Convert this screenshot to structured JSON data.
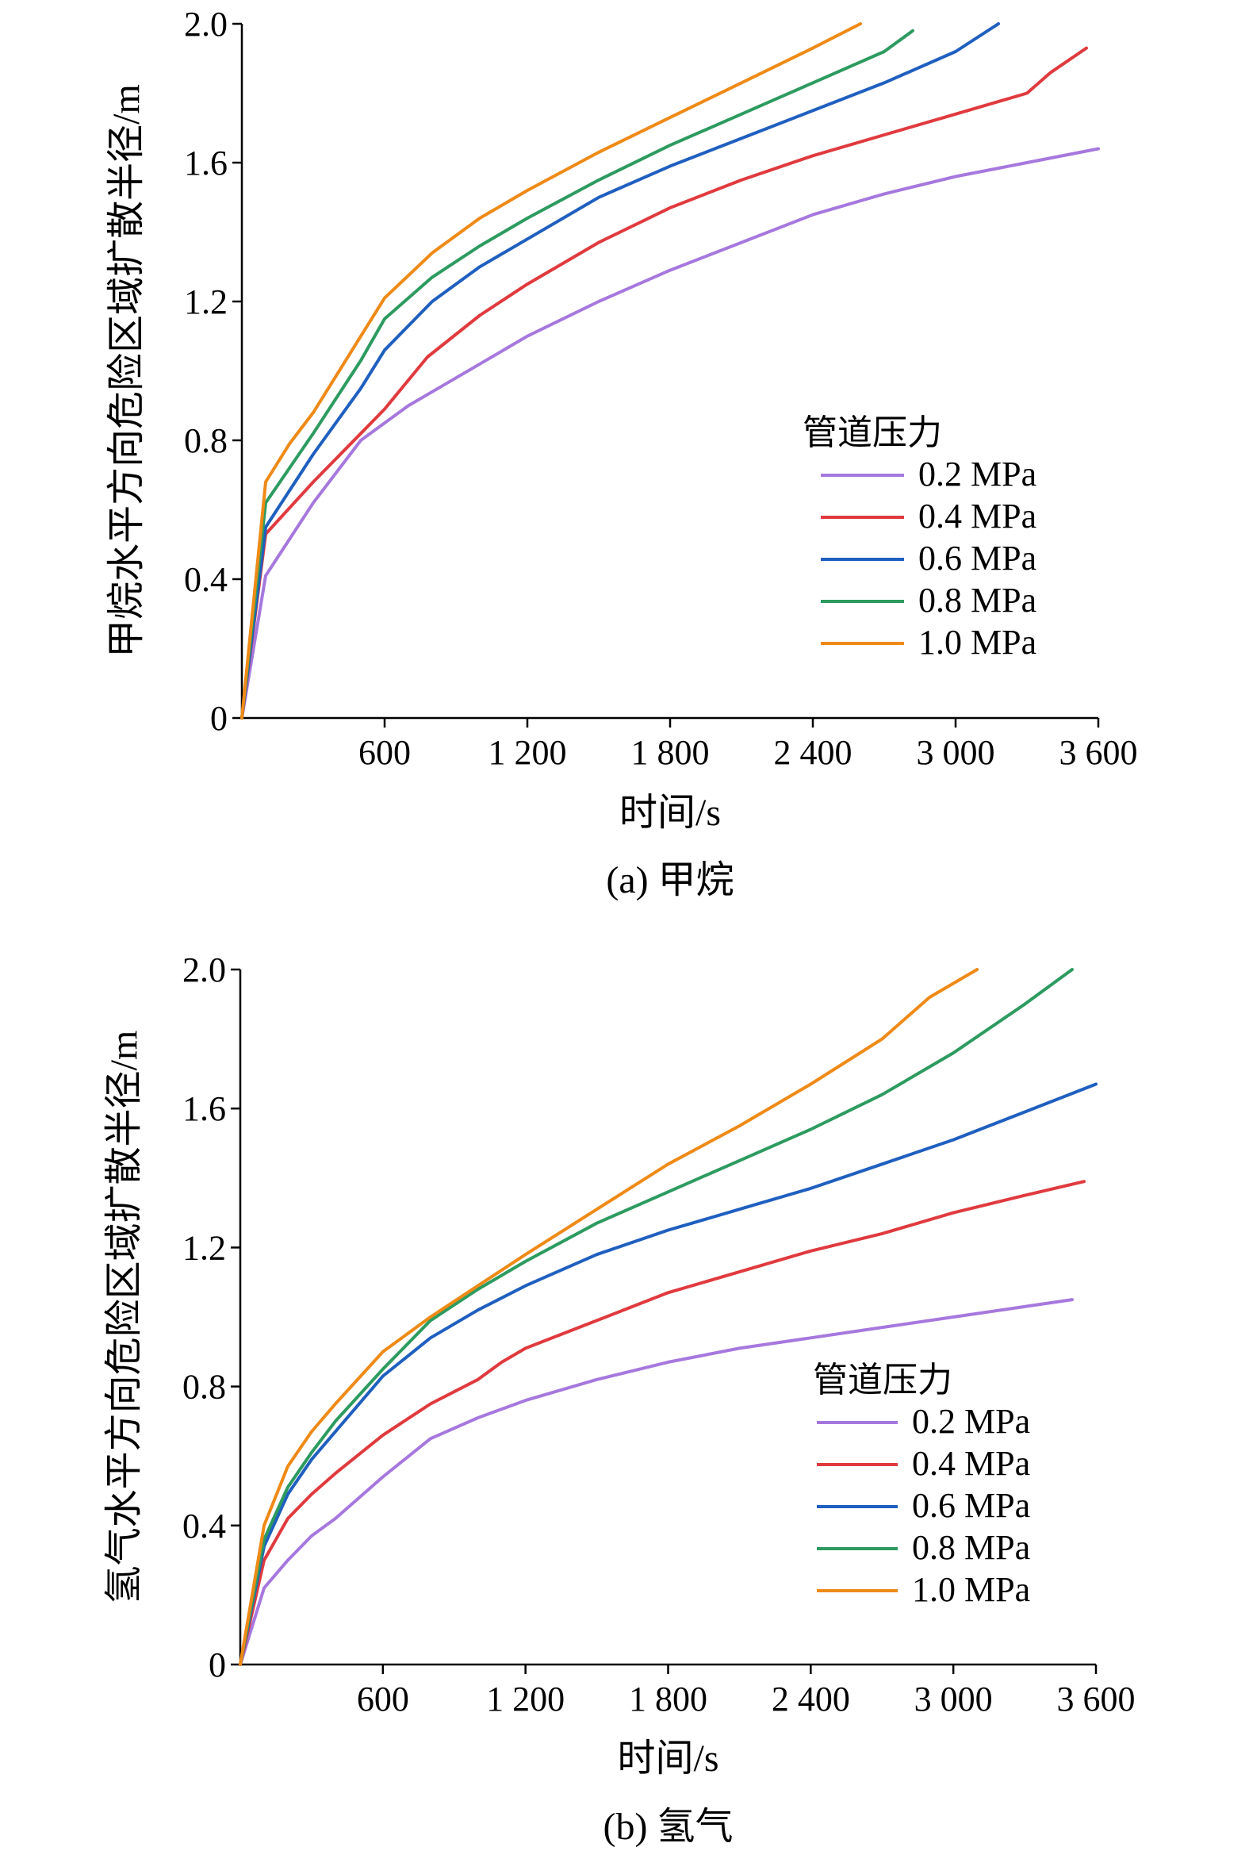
{
  "chart_data": [
    {
      "type": "line",
      "caption": "(a) 甲烷",
      "xlabel": "时间/s",
      "ylabel": "甲烷水平方向危险区域扩散半径/m",
      "xlim": [
        0,
        3600
      ],
      "ylim": [
        0,
        2.0
      ],
      "xticks": [
        600,
        1200,
        1800,
        2400,
        3000,
        3600
      ],
      "xtick_labels": [
        "600",
        "1 200",
        "1 800",
        "2 400",
        "3 000",
        "3 600"
      ],
      "yticks": [
        0,
        0.4,
        0.8,
        1.2,
        1.6,
        2.0
      ],
      "ytick_labels": [
        "0",
        "0.4",
        "0.8",
        "1.2",
        "1.6",
        "2.0"
      ],
      "grid": false,
      "legend_title": "管道压力",
      "legend_position": "right-middle",
      "series": [
        {
          "name": "0.2 MPa",
          "color": "#a678de",
          "x": [
            0,
            100,
            300,
            500,
            600,
            700,
            800,
            1000,
            1200,
            1500,
            1800,
            2100,
            2400,
            2700,
            3000,
            3300,
            3600
          ],
          "y": [
            0,
            0.41,
            0.62,
            0.8,
            0.85,
            0.9,
            0.94,
            1.02,
            1.1,
            1.2,
            1.29,
            1.37,
            1.45,
            1.51,
            1.56,
            1.6,
            1.64
          ]
        },
        {
          "name": "0.4 MPa",
          "color": "#e03a3e",
          "x": [
            0,
            100,
            300,
            500,
            600,
            780,
            1000,
            1200,
            1500,
            1800,
            2100,
            2400,
            2700,
            3000,
            3300,
            3400,
            3550
          ],
          "y": [
            0,
            0.53,
            0.68,
            0.82,
            0.89,
            1.04,
            1.16,
            1.25,
            1.37,
            1.47,
            1.55,
            1.62,
            1.68,
            1.74,
            1.8,
            1.86,
            1.93
          ]
        },
        {
          "name": "0.6 MPa",
          "color": "#1f5fbf",
          "x": [
            0,
            100,
            300,
            500,
            600,
            800,
            1000,
            1200,
            1500,
            1800,
            2100,
            2400,
            2700,
            3000,
            3180
          ],
          "y": [
            0,
            0.55,
            0.76,
            0.95,
            1.06,
            1.2,
            1.3,
            1.38,
            1.5,
            1.59,
            1.67,
            1.75,
            1.83,
            1.92,
            2.0
          ]
        },
        {
          "name": "0.8 MPa",
          "color": "#2d9b5f",
          "x": [
            0,
            100,
            300,
            500,
            600,
            800,
            1000,
            1200,
            1500,
            1800,
            2100,
            2400,
            2700,
            2820
          ],
          "y": [
            0,
            0.62,
            0.82,
            1.03,
            1.15,
            1.27,
            1.36,
            1.44,
            1.55,
            1.65,
            1.74,
            1.83,
            1.92,
            1.98
          ]
        },
        {
          "name": "1.0 MPa",
          "color": "#ef8a17",
          "x": [
            0,
            100,
            200,
            300,
            400,
            500,
            600,
            800,
            1000,
            1200,
            1500,
            1800,
            2100,
            2400,
            2600
          ],
          "y": [
            0,
            0.68,
            0.79,
            0.88,
            0.99,
            1.1,
            1.21,
            1.34,
            1.44,
            1.52,
            1.63,
            1.73,
            1.83,
            1.93,
            2.0
          ]
        }
      ]
    },
    {
      "type": "line",
      "caption": "(b) 氢气",
      "xlabel": "时间/s",
      "ylabel": "氢气水平方向危险区域扩散半径/m",
      "xlim": [
        0,
        3600
      ],
      "ylim": [
        0,
        2.0
      ],
      "xticks": [
        600,
        1200,
        1800,
        2400,
        3000,
        3600
      ],
      "xtick_labels": [
        "600",
        "1 200",
        "1 800",
        "2 400",
        "3 000",
        "3 600"
      ],
      "yticks": [
        0,
        0.4,
        0.8,
        1.2,
        1.6,
        2.0
      ],
      "ytick_labels": [
        "0",
        "0.4",
        "0.8",
        "1.2",
        "1.6",
        "2.0"
      ],
      "grid": false,
      "legend_title": "管道压力",
      "legend_position": "right-middle",
      "series": [
        {
          "name": "0.2 MPa",
          "color": "#a678de",
          "x": [
            0,
            100,
            200,
            300,
            400,
            600,
            800,
            1000,
            1200,
            1500,
            1800,
            2100,
            2400,
            2700,
            3000,
            3300,
            3500
          ],
          "y": [
            0,
            0.22,
            0.3,
            0.37,
            0.42,
            0.54,
            0.65,
            0.71,
            0.76,
            0.82,
            0.87,
            0.91,
            0.94,
            0.97,
            1.0,
            1.03,
            1.05
          ]
        },
        {
          "name": "0.4 MPa",
          "color": "#e03a3e",
          "x": [
            0,
            100,
            200,
            300,
            400,
            600,
            800,
            1000,
            1100,
            1200,
            1500,
            1800,
            2100,
            2400,
            2700,
            3000,
            3300,
            3550
          ],
          "y": [
            0,
            0.3,
            0.42,
            0.49,
            0.55,
            0.66,
            0.75,
            0.82,
            0.87,
            0.91,
            0.99,
            1.07,
            1.13,
            1.19,
            1.24,
            1.3,
            1.35,
            1.39
          ]
        },
        {
          "name": "0.6 MPa",
          "color": "#1f5fbf",
          "x": [
            0,
            100,
            200,
            300,
            400,
            600,
            800,
            1000,
            1200,
            1500,
            1800,
            2100,
            2400,
            2700,
            3000,
            3300,
            3600
          ],
          "y": [
            0,
            0.34,
            0.49,
            0.59,
            0.67,
            0.83,
            0.94,
            1.02,
            1.09,
            1.18,
            1.25,
            1.31,
            1.37,
            1.44,
            1.51,
            1.59,
            1.67
          ]
        },
        {
          "name": "0.8 MPa",
          "color": "#2d9b5f",
          "x": [
            0,
            100,
            200,
            300,
            400,
            600,
            800,
            1000,
            1200,
            1500,
            1800,
            2100,
            2400,
            2700,
            3000,
            3300,
            3500
          ],
          "y": [
            0,
            0.36,
            0.51,
            0.61,
            0.7,
            0.85,
            0.99,
            1.08,
            1.16,
            1.27,
            1.36,
            1.45,
            1.54,
            1.64,
            1.76,
            1.9,
            2.0
          ]
        },
        {
          "name": "1.0 MPa",
          "color": "#ef8a17",
          "x": [
            0,
            100,
            200,
            300,
            400,
            600,
            800,
            1000,
            1200,
            1500,
            1800,
            2100,
            2400,
            2700,
            2900,
            3100
          ],
          "y": [
            0,
            0.4,
            0.57,
            0.67,
            0.75,
            0.9,
            1.0,
            1.09,
            1.18,
            1.31,
            1.44,
            1.55,
            1.67,
            1.8,
            1.92,
            2.0
          ]
        }
      ]
    }
  ]
}
